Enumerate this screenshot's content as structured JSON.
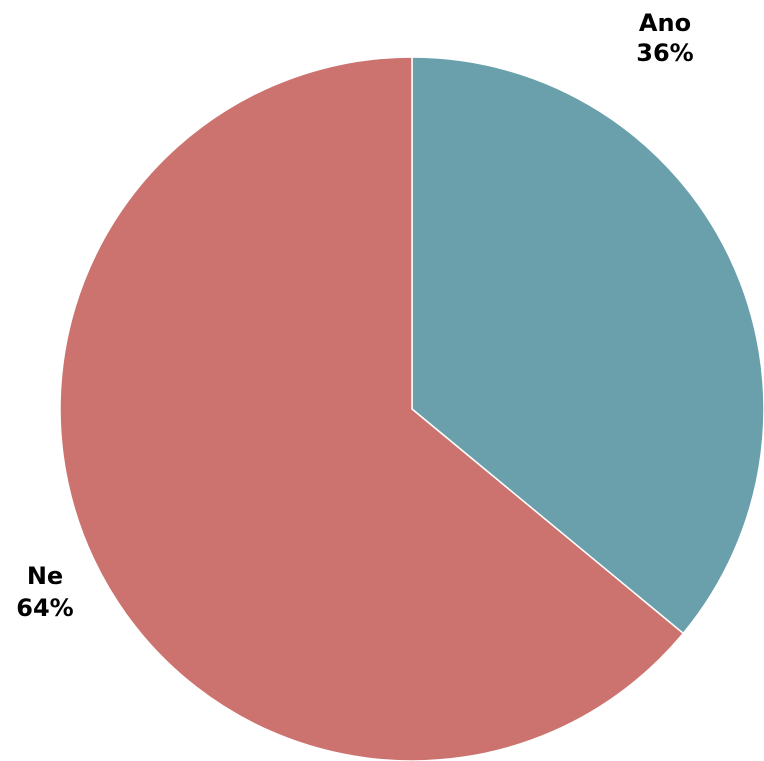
{
  "chart_data": {
    "type": "pie",
    "title": "",
    "start_angle_deg": 0,
    "direction": "clockwise",
    "slices": [
      {
        "label": "Ano",
        "value": 36,
        "value_label": "36%",
        "color": "#6a9fac"
      },
      {
        "label": "Ne",
        "value": 64,
        "value_label": "64%",
        "color": "#cc736f"
      }
    ],
    "slice_border_color": "#ffffff",
    "legend": "none"
  }
}
